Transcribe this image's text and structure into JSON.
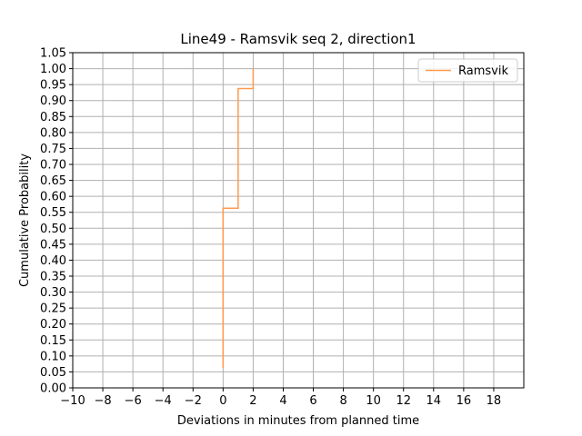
{
  "chart_data": {
    "type": "line",
    "title": "Line49 - Ramsvik seq 2, direction1",
    "xlabel": "Deviations in minutes from planned time",
    "ylabel": "Cumulative Probability",
    "xlim": [
      -10,
      20
    ],
    "ylim": [
      0,
      1.05
    ],
    "x_ticks": [
      "−10",
      "−8",
      "−6",
      "−4",
      "−2",
      "0",
      "2",
      "4",
      "6",
      "8",
      "10",
      "12",
      "14",
      "16",
      "18"
    ],
    "x_tick_values": [
      -10,
      -8,
      -6,
      -4,
      -2,
      0,
      2,
      4,
      6,
      8,
      10,
      12,
      14,
      16,
      18
    ],
    "y_ticks": [
      "0.00",
      "0.05",
      "0.10",
      "0.15",
      "0.20",
      "0.25",
      "0.30",
      "0.35",
      "0.40",
      "0.45",
      "0.50",
      "0.55",
      "0.60",
      "0.65",
      "0.70",
      "0.75",
      "0.80",
      "0.85",
      "0.90",
      "0.95",
      "1.00",
      "1.05"
    ],
    "y_tick_values": [
      0,
      0.05,
      0.1,
      0.15,
      0.2,
      0.25,
      0.3,
      0.35,
      0.4,
      0.45,
      0.5,
      0.55,
      0.6,
      0.65,
      0.7,
      0.75,
      0.8,
      0.85,
      0.9,
      0.95,
      1.0,
      1.05
    ],
    "grid": true,
    "legend_position": "top-right",
    "series": [
      {
        "name": "Ramsvik",
        "color": "#ff9a4d",
        "step": "post",
        "x": [
          0,
          0,
          1,
          1,
          2,
          2
        ],
        "y": [
          0.0625,
          0.5625,
          0.5625,
          0.9375,
          0.9375,
          1.0
        ]
      }
    ]
  }
}
